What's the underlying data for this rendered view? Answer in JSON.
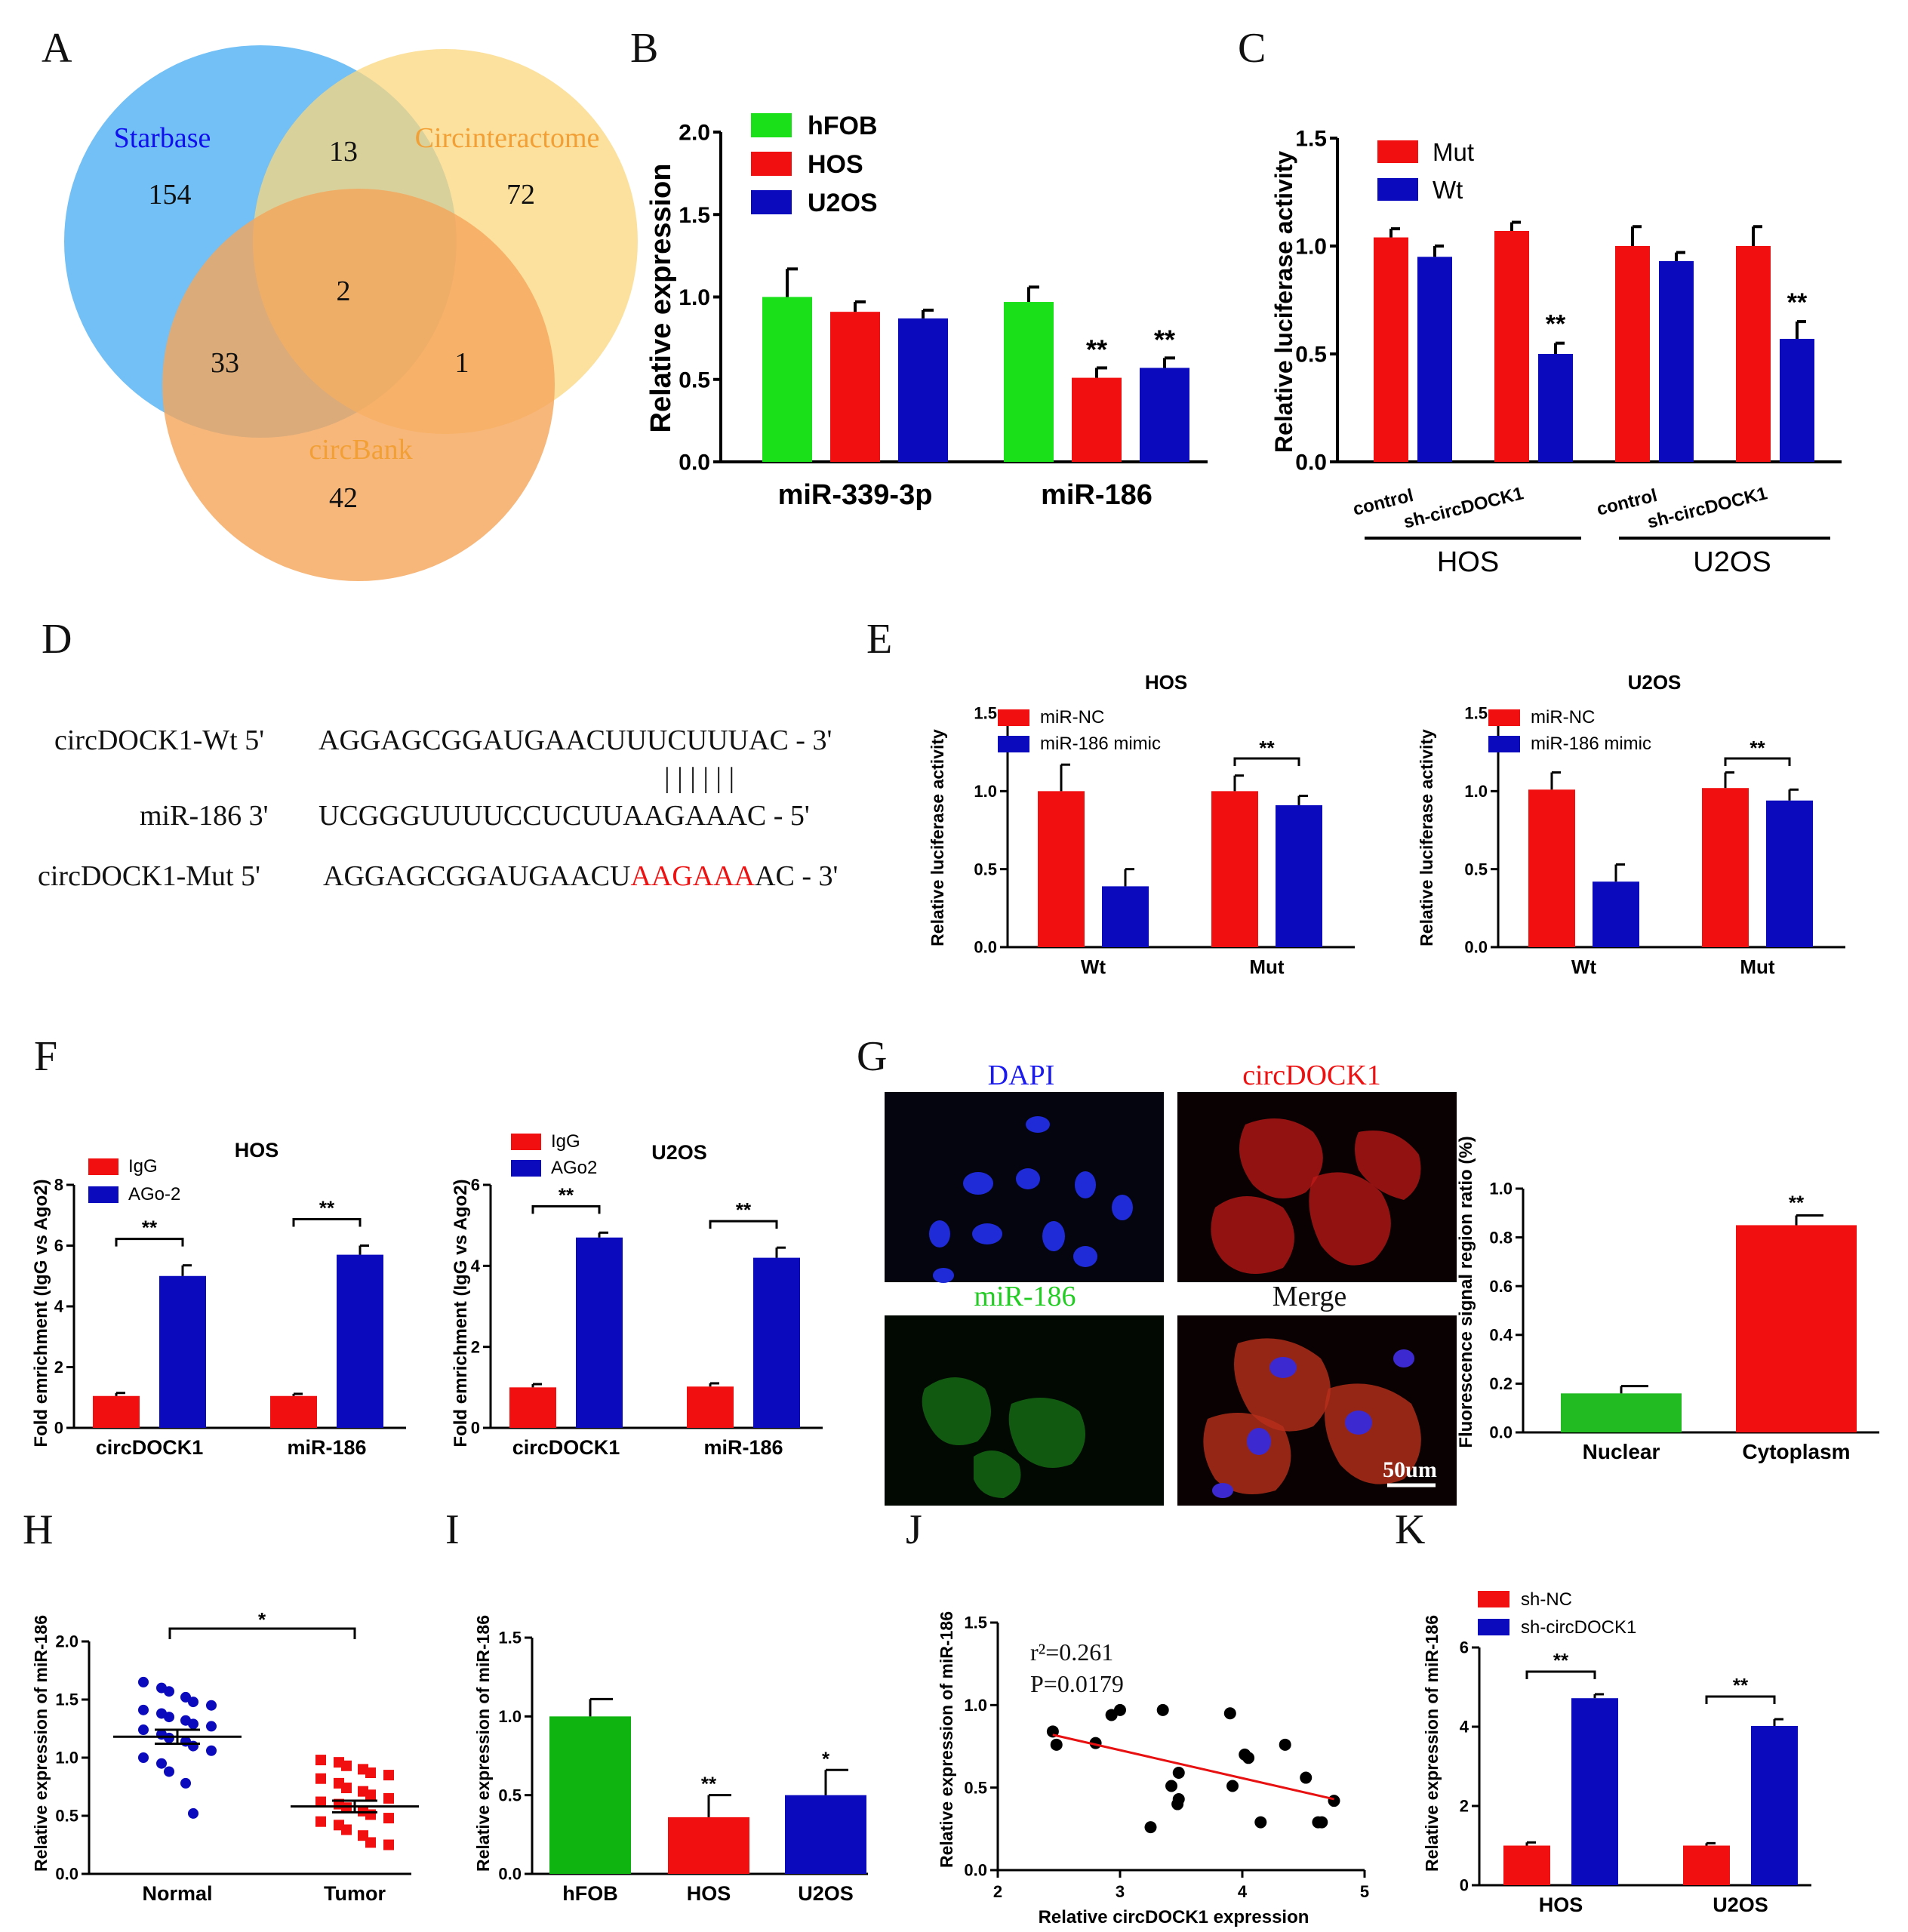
{
  "colors": {
    "green": "#19e019",
    "red": "#f20f0f",
    "blue": "#0b0bbd",
    "venn_blue": "#63b9f5",
    "venn_yellow": "#fbd77e",
    "venn_orange": "#f5a55a",
    "g_green": "#22bb22",
    "h_green": "#10b410"
  },
  "panels": {
    "A": "A",
    "B": "B",
    "C": "C",
    "D": "D",
    "E": "E",
    "F": "F",
    "G": "G",
    "H": "H",
    "I": "I",
    "J": "J",
    "K": "K"
  },
  "venn": {
    "starbase": "Starbase",
    "circinteractome": "Circinteractome",
    "circbank": "circBank",
    "n154": "154",
    "n13": "13",
    "n72": "72",
    "n2": "2",
    "n33": "33",
    "n1": "1",
    "n42": "42"
  },
  "sigs": {
    "double": "**",
    "single": "*"
  },
  "b": {
    "ylabel": "Relative expression",
    "legend": [
      "hFOB",
      "HOS",
      "U2OS"
    ],
    "chart_data": {
      "type": "bar",
      "categories": [
        "miR-339-3p",
        "miR-186"
      ],
      "ylim": [
        0,
        2.0
      ],
      "yticks": [
        "0.0",
        "0.5",
        "1.0",
        "1.5",
        "2.0"
      ],
      "series": [
        {
          "name": "hFOB",
          "values": [
            1.0,
            0.97
          ],
          "err": [
            0.17,
            0.09
          ]
        },
        {
          "name": "HOS",
          "values": [
            0.91,
            0.51
          ],
          "err": [
            0.06,
            0.06
          ]
        },
        {
          "name": "U2OS",
          "values": [
            0.87,
            0.57
          ],
          "err": [
            0.05,
            0.06
          ]
        }
      ]
    }
  },
  "c": {
    "ylabel": "Relative luciferase activity",
    "legend": [
      "Mut",
      "Wt"
    ],
    "xlabels": [
      "control",
      "sh-circDOCK1",
      "control",
      "sh-circDOCK1"
    ],
    "groups": [
      "HOS",
      "U2OS"
    ],
    "chart_data": {
      "type": "bar",
      "categories": [
        "HOS control",
        "HOS sh-circDOCK1",
        "U2OS control",
        "U2OS sh-circDOCK1"
      ],
      "ylim": [
        0,
        1.5
      ],
      "yticks": [
        "0.0",
        "0.5",
        "1.0",
        "1.5"
      ],
      "series": [
        {
          "name": "Mut",
          "values": [
            1.04,
            1.07,
            1.0,
            1.0
          ],
          "err": [
            0.04,
            0.04,
            0.09,
            0.09
          ]
        },
        {
          "name": "Wt",
          "values": [
            0.95,
            0.5,
            0.93,
            0.57
          ],
          "err": [
            0.05,
            0.05,
            0.04,
            0.08
          ]
        }
      ]
    }
  },
  "d": {
    "wt_label": "circDOCK1-Wt 5'",
    "wt_seq": "AGGAGCGGAUGAACUUUCUUUAC - 3'",
    "bars": "| | | | | |",
    "mir_label": "miR-186 3'",
    "mir_seq": "UCGGGUUUUCCUCUUAAGAAAC - 5'",
    "mut_label": "circDOCK1-Mut 5'",
    "mut_seq_a": "AGGAGCGGAUGAACU",
    "mut_seq_b": "AAGAAA",
    "mut_seq_c": "AC - 3'"
  },
  "e_hos": {
    "title": "HOS",
    "ylabel": "Relative luciferase activity",
    "legend": [
      "miR-NC",
      "miR-186 mimic"
    ],
    "chart_data": {
      "type": "bar",
      "categories": [
        "Wt",
        "Mut"
      ],
      "ylim": [
        0,
        1.5
      ],
      "yticks": [
        "0.0",
        "0.5",
        "1.0",
        "1.5"
      ],
      "series": [
        {
          "name": "miR-NC",
          "values": [
            1.0,
            1.0
          ],
          "err": [
            0.17,
            0.1
          ]
        },
        {
          "name": "miR-186 mimic",
          "values": [
            0.39,
            0.91
          ],
          "err": [
            0.11,
            0.06
          ]
        }
      ]
    }
  },
  "e_u2os": {
    "title": "U2OS",
    "ylabel": "Relative luciferase activity",
    "legend": [
      "miR-NC",
      "miR-186 mimic"
    ],
    "chart_data": {
      "type": "bar",
      "categories": [
        "Wt",
        "Mut"
      ],
      "ylim": [
        0,
        1.5
      ],
      "yticks": [
        "0.0",
        "0.5",
        "1.0",
        "1.5"
      ],
      "series": [
        {
          "name": "miR-NC",
          "values": [
            1.01,
            1.02
          ],
          "err": [
            0.11,
            0.1
          ]
        },
        {
          "name": "miR-186 mimic",
          "values": [
            0.42,
            0.94
          ],
          "err": [
            0.11,
            0.07
          ]
        }
      ]
    }
  },
  "f_hos": {
    "title": "HOS",
    "ylabel": "Fold emrichment (IgG vs Ago2)",
    "legend": [
      "IgG",
      "AGo-2"
    ],
    "chart_data": {
      "type": "bar",
      "categories": [
        "circDOCK1",
        "miR-186"
      ],
      "ylim": [
        0,
        8
      ],
      "yticks": [
        "0",
        "2",
        "4",
        "6",
        "8"
      ],
      "series": [
        {
          "name": "IgG",
          "values": [
            1.05,
            1.05
          ],
          "err": [
            0.1,
            0.07
          ]
        },
        {
          "name": "AGo-2",
          "values": [
            5.0,
            5.7
          ],
          "err": [
            0.35,
            0.3
          ]
        }
      ]
    }
  },
  "f_u2os": {
    "title": "U2OS",
    "ylabel": "Fold emrichment (IgG vs Ago2)",
    "legend": [
      "IgG",
      "AGo2"
    ],
    "chart_data": {
      "type": "bar",
      "categories": [
        "circDOCK1",
        "miR-186"
      ],
      "ylim": [
        0,
        6
      ],
      "yticks": [
        "0",
        "2",
        "4",
        "6"
      ],
      "series": [
        {
          "name": "IgG",
          "values": [
            1.0,
            1.02
          ],
          "err": [
            0.08,
            0.08
          ]
        },
        {
          "name": "AGo2",
          "values": [
            4.7,
            4.2
          ],
          "err": [
            0.12,
            0.25
          ]
        }
      ]
    }
  },
  "g": {
    "dapi": "DAPI",
    "circdock1": "circDOCK1",
    "mir186": "miR-186",
    "merge": "Merge",
    "scale": "50um",
    "ylabel": "Fluorescence signal region ratio (%)",
    "chart_data": {
      "type": "bar",
      "categories": [
        "Nuclear",
        "Cytoplasm"
      ],
      "ylim": [
        0,
        1.0
      ],
      "yticks": [
        "0.0",
        "0.2",
        "0.4",
        "0.6",
        "0.8",
        "1.0"
      ],
      "series": [
        {
          "name": "ratio",
          "values": [
            0.16,
            0.85
          ],
          "err": [
            0.03,
            0.04
          ]
        }
      ]
    }
  },
  "h": {
    "ylabel": "Relative expression of miR-186",
    "chart_data": {
      "type": "scatter",
      "categories": [
        "Normal",
        "Tumor"
      ],
      "ylim": [
        0,
        2.0
      ],
      "yticks": [
        "0.0",
        "0.5",
        "1.0",
        "1.5",
        "2.0"
      ],
      "normal": [
        1.65,
        1.6,
        1.57,
        1.52,
        1.48,
        1.45,
        1.41,
        1.38,
        1.35,
        1.32,
        1.29,
        1.27,
        1.24,
        1.2,
        1.17,
        1.14,
        1.1,
        1.06,
        1.0,
        0.95,
        0.88,
        0.78,
        0.52
      ],
      "tumor": [
        0.98,
        0.96,
        0.93,
        0.9,
        0.87,
        0.85,
        0.82,
        0.78,
        0.74,
        0.71,
        0.68,
        0.65,
        0.62,
        0.6,
        0.57,
        0.54,
        0.51,
        0.48,
        0.45,
        0.42,
        0.38,
        0.33,
        0.27,
        0.25
      ],
      "mean": [
        1.18,
        0.58
      ],
      "sem": [
        0.06,
        0.05
      ]
    }
  },
  "i": {
    "ylabel": "Relative expression of miR-186",
    "chart_data": {
      "type": "bar",
      "categories": [
        "hFOB",
        "HOS",
        "U2OS"
      ],
      "ylim": [
        0,
        1.5
      ],
      "yticks": [
        "0.0",
        "0.5",
        "1.0",
        "1.5"
      ],
      "values": [
        1.0,
        0.36,
        0.5
      ],
      "err": [
        0.11,
        0.14,
        0.16
      ]
    }
  },
  "j": {
    "ylabel": "Relative expression of miR-186",
    "xlabel": "Relative circDOCK1 expression",
    "r2": "r²=0.261",
    "p": "P=0.0179",
    "chart_data": {
      "type": "scatter",
      "xlim": [
        2,
        5
      ],
      "ylim": [
        0,
        1.5
      ],
      "xticks": [
        "2",
        "3",
        "4",
        "5"
      ],
      "yticks": [
        "0.0",
        "0.5",
        "1.0",
        "1.5"
      ],
      "x": [
        2.45,
        2.48,
        2.8,
        2.93,
        3.0,
        3.35,
        3.9,
        4.02,
        4.05,
        3.92,
        4.35,
        4.52,
        3.48,
        3.42,
        3.48,
        3.47,
        3.25,
        4.15,
        4.62,
        4.65,
        4.75
      ],
      "y": [
        0.84,
        0.76,
        0.77,
        0.94,
        0.97,
        0.97,
        0.95,
        0.7,
        0.68,
        0.51,
        0.76,
        0.56,
        0.59,
        0.51,
        0.43,
        0.4,
        0.26,
        0.29,
        0.29,
        0.29,
        0.42
      ],
      "line": [
        [
          2.45,
          0.82
        ],
        [
          4.75,
          0.43
        ]
      ]
    }
  },
  "k": {
    "ylabel": "Relative expression of miR-186",
    "legend": [
      "sh-NC",
      "sh-circDOCK1"
    ],
    "chart_data": {
      "type": "bar",
      "categories": [
        "HOS",
        "U2OS"
      ],
      "ylim": [
        0,
        6
      ],
      "yticks": [
        "0",
        "2",
        "4",
        "6"
      ],
      "series": [
        {
          "name": "sh-NC",
          "values": [
            1.0,
            1.0
          ],
          "err": [
            0.08,
            0.06
          ]
        },
        {
          "name": "sh-circDOCK1",
          "values": [
            4.72,
            4.02
          ],
          "err": [
            0.1,
            0.17
          ]
        }
      ]
    }
  }
}
